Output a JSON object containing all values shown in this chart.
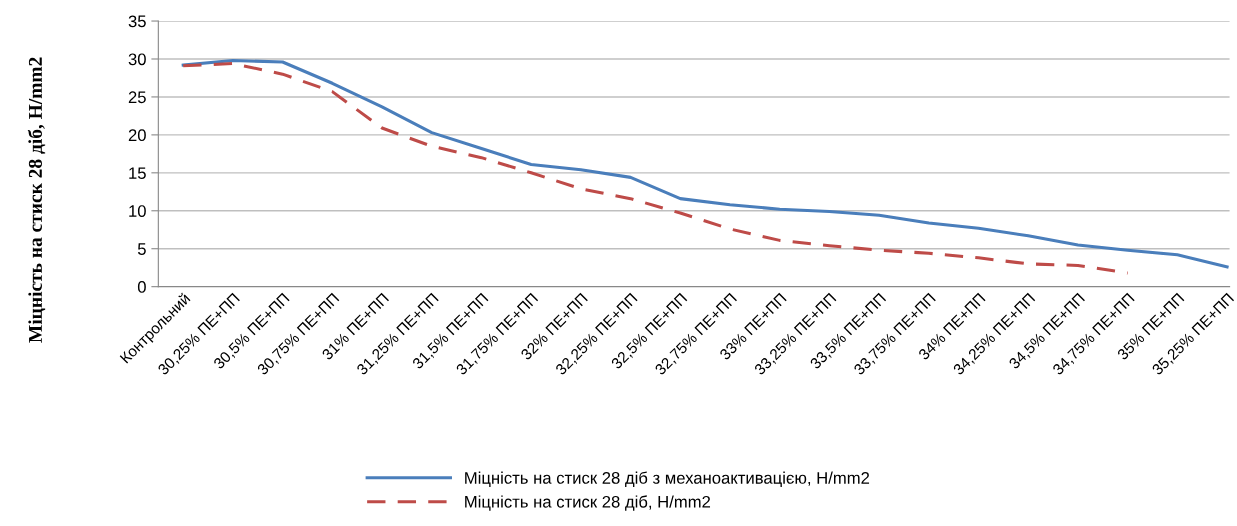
{
  "chart_data": {
    "type": "line",
    "ylabel": "Міцність на стиск 28 діб, Н/mm2",
    "categories": [
      "Контрольний",
      "30,25% ПЕ+ПП",
      "30,5% ПЕ+ПП",
      "30,75% ПЕ+ПП",
      "31% ПЕ+ПП",
      "31,25% ПЕ+ПП",
      "31,5% ПЕ+ПП",
      "31,75% ПЕ+ПП",
      "32% ПЕ+ПП",
      "32,25% ПЕ+ПП",
      "32,5% ПЕ+ПП",
      "32,75% ПЕ+ПП",
      "33% ПЕ+ПП",
      "33,25% ПЕ+ПП",
      "33,5% ПЕ+ПП",
      "33,75% ПЕ+ПП",
      "34% ПЕ+ПП",
      "34,25% ПЕ+ПП",
      "34,5% ПЕ+ПП",
      "34,75% ПЕ+ПП",
      "35% ПЕ+ПП",
      "35,25% ПЕ+ПП"
    ],
    "series": [
      {
        "name": "Міцність на стиск 28 діб з механоактивацією, Н/mm2",
        "color": "#4a7ebb",
        "line_style": "solid",
        "values": [
          29.2,
          29.8,
          29.6,
          26.8,
          23.7,
          20.3,
          18.2,
          16.1,
          15.4,
          14.4,
          11.6,
          10.8,
          10.2,
          9.9,
          9.4,
          8.4,
          7.7,
          6.7,
          5.5,
          4.8,
          4.2,
          2.6
        ]
      },
      {
        "name": "Міцність на стиск 28 діб, Н/mm2",
        "color": "#be4b48",
        "line_style": "dashed",
        "values": [
          29.1,
          29.4,
          28.0,
          25.7,
          20.9,
          18.5,
          17.0,
          15.0,
          12.9,
          11.6,
          9.7,
          7.6,
          6.1,
          5.4,
          4.8,
          4.4,
          3.8,
          3.0,
          2.8,
          1.8,
          null,
          null
        ]
      }
    ],
    "ylim": [
      0,
      35
    ],
    "yticks": [
      0,
      5,
      10,
      15,
      20,
      25,
      30,
      35
    ],
    "grid": "y",
    "legend": "bottom",
    "marker": "none"
  }
}
